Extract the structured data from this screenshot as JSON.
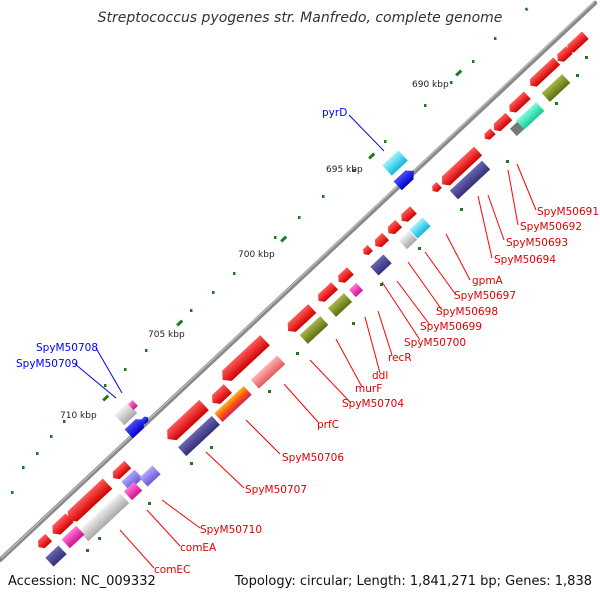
{
  "map": {
    "title": "Streptococcus pyogenes str. Manfredo, complete genome",
    "accession": "Accession: NC_009332",
    "topology": "Topology: circular; Length: 1,841,271 bp; Genes: 1,838",
    "ticks": [
      {
        "id": "tick-690",
        "label": "690 kbp"
      },
      {
        "id": "tick-695",
        "label": "695 kbp"
      },
      {
        "id": "tick-700",
        "label": "700 kbp"
      },
      {
        "id": "tick-705",
        "label": "705 kbp"
      },
      {
        "id": "tick-710",
        "label": "710 kbp"
      }
    ],
    "forward_labels": [
      {
        "id": "pyrd",
        "text": "pyrD"
      },
      {
        "id": "spym50708",
        "text": "SpyM50708"
      },
      {
        "id": "spym50709",
        "text": "SpyM50709"
      }
    ],
    "reverse_labels": [
      {
        "id": "spym50691",
        "text": "SpyM50691"
      },
      {
        "id": "spym50692",
        "text": "SpyM50692"
      },
      {
        "id": "spym50693",
        "text": "SpyM50693"
      },
      {
        "id": "spym50694",
        "text": "SpyM50694"
      },
      {
        "id": "gpma",
        "text": "gpmA"
      },
      {
        "id": "spym50697",
        "text": "SpyM50697"
      },
      {
        "id": "spym50698",
        "text": "SpyM50698"
      },
      {
        "id": "spym50699",
        "text": "SpyM50699"
      },
      {
        "id": "spym50700",
        "text": "SpyM50700"
      },
      {
        "id": "recr",
        "text": "recR"
      },
      {
        "id": "ddl",
        "text": "ddl"
      },
      {
        "id": "murf",
        "text": "murF"
      },
      {
        "id": "spym50704",
        "text": "SpyM50704"
      },
      {
        "id": "prfc",
        "text": "prfC"
      },
      {
        "id": "spym50706",
        "text": "SpyM50706"
      },
      {
        "id": "spym50707",
        "text": "SpyM50707"
      },
      {
        "id": "spym50710",
        "text": "SpyM50710"
      },
      {
        "id": "comea",
        "text": "comEA"
      },
      {
        "id": "comec",
        "text": "comEC"
      }
    ],
    "colors": {
      "backbone": "#8a8a8a",
      "gene_red": "#ff0000",
      "forward_label": "#0000ff",
      "reverse_label": "#e00000",
      "tick": "#1e7a1e"
    }
  }
}
